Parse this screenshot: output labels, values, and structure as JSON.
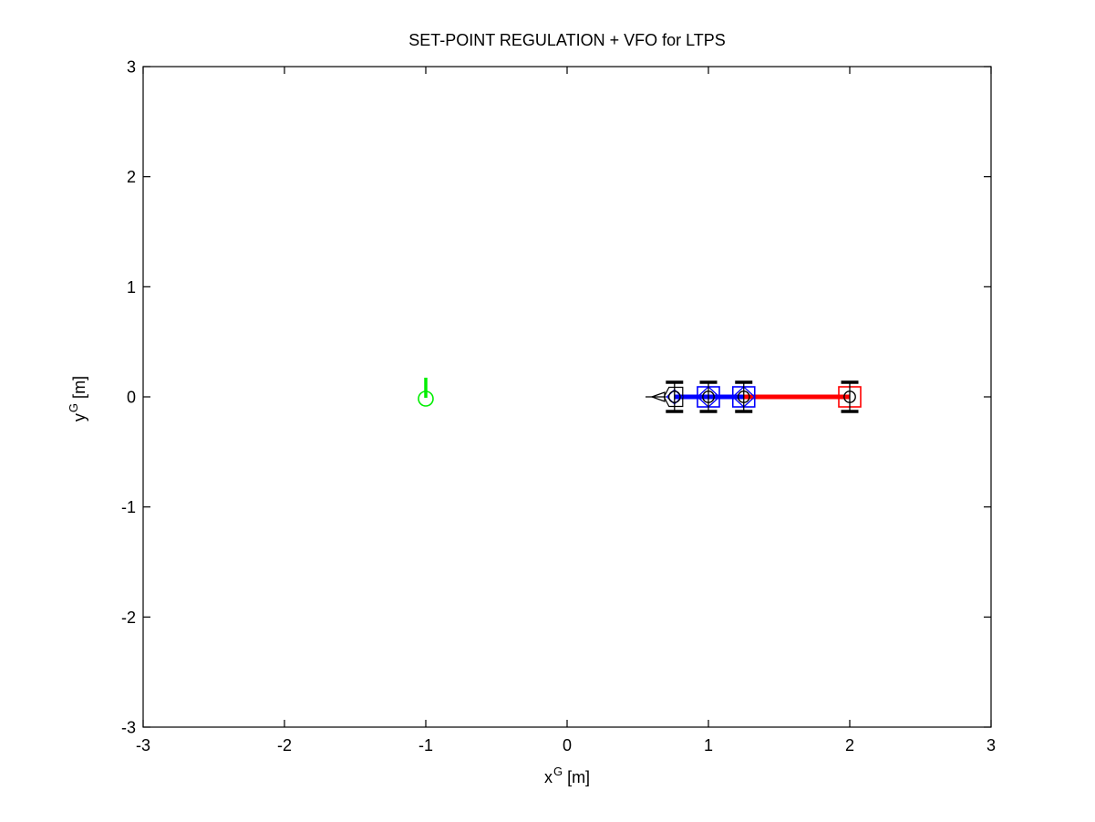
{
  "figure": {
    "background": "#ffffff"
  },
  "chart_data": {
    "type": "scatter",
    "title": "SET-POINT REGULATION + VFO for LTPS",
    "xlabel_base": "x",
    "xlabel_sup": "G",
    "xlabel_unit": "[m]",
    "ylabel_base": "y",
    "ylabel_sup": "G",
    "ylabel_unit": "[m]",
    "xlim": [
      -3,
      3
    ],
    "ylim": [
      -3,
      3
    ],
    "xticks": [
      -3,
      -2,
      -1,
      0,
      1,
      2,
      3
    ],
    "yticks": [
      -3,
      -2,
      -1,
      0,
      1,
      2,
      3
    ],
    "grid": false,
    "legend": null,
    "colors": {
      "goal": "#00ee00",
      "front_links": "#0000ff",
      "last_link": "#ff0000",
      "axis": "#000000"
    },
    "goal": {
      "x": -1.0,
      "y": 0.0,
      "heading": "up"
    },
    "guidance_arrow": {
      "shaft_x1": 0.555,
      "shaft_x2": 0.7,
      "tip_x": 0.6,
      "back_x": 0.69,
      "y": 0.0
    },
    "tractor": {
      "x": 0.76,
      "y": 0.0
    },
    "trailers": [
      {
        "x": 1.0,
        "y": 0.0,
        "box": "#0000ff",
        "diamond": true
      },
      {
        "x": 1.25,
        "y": 0.0,
        "box": "#0000ff",
        "diamond": true
      },
      {
        "x": 2.0,
        "y": 0.0,
        "box": "#ff0000",
        "diamond": false
      }
    ],
    "links": [
      {
        "name": "front",
        "x1": 0.76,
        "x2": 1.25,
        "y": 0.0,
        "color": "#0000ff"
      },
      {
        "name": "last",
        "x1": 1.25,
        "x2": 2.0,
        "y": 0.0,
        "color": "#ff0000"
      }
    ],
    "glyph": {
      "link_w": 5,
      "arrow_h": 5,
      "axle_half": 17.5,
      "wheel_half": 9.5,
      "wheel_off": 16,
      "wheel_t": 3.5,
      "hub_r": 6.2,
      "box_hw": 12,
      "box_hh": 11,
      "goal_r": 8,
      "goal_head_len": 21
    }
  }
}
